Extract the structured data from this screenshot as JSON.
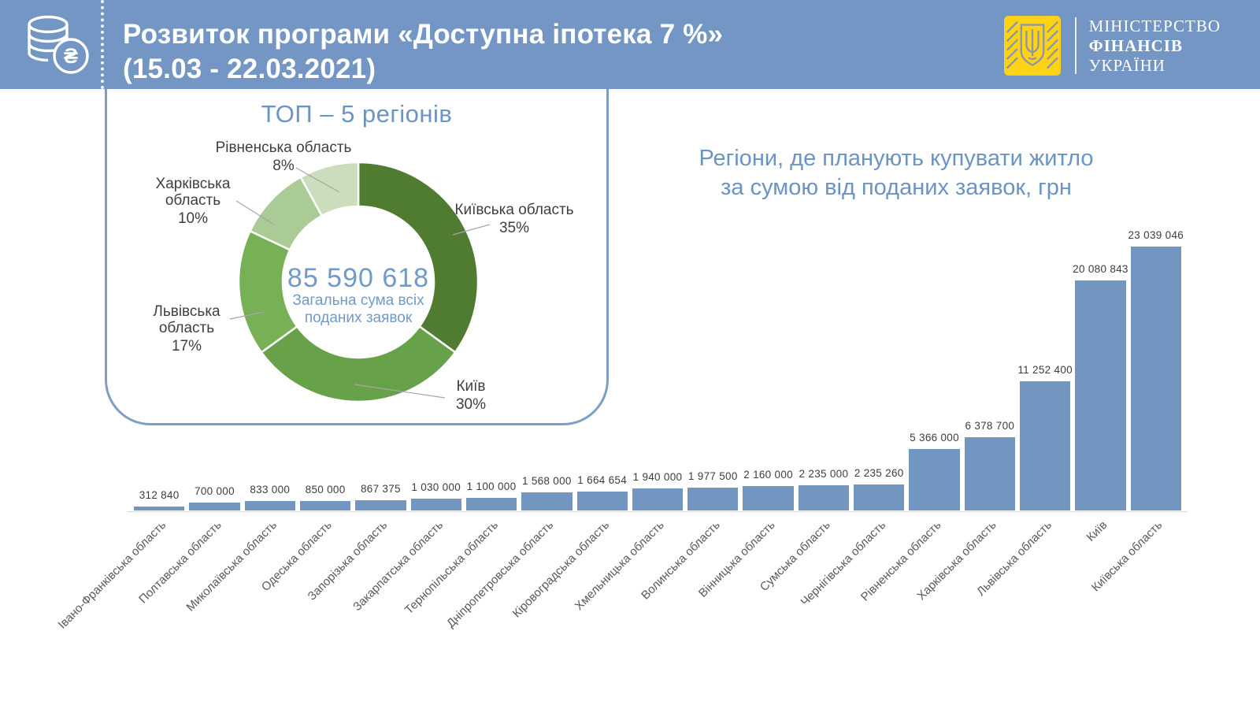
{
  "header": {
    "title_line1": "Розвиток програми «Доступна іпотека 7 %»",
    "title_line2": "(15.03 - 22.03.2021)",
    "coin_symbol": "₴",
    "ministry": {
      "line1": "МІНІСТЕРСТВО",
      "line2": "ФІНАНСІВ",
      "line3": "УКРАЇНИ"
    }
  },
  "colors": {
    "header_bg": "#7396c4",
    "bar_fill": "#7396c1",
    "accent_blue_text": "#6b94c5",
    "card_border": "#7d9fc7",
    "logo_yellow": "#fed215",
    "axis_line": "#d9d9d9",
    "donut_greens": [
      "#4f7c31",
      "#67a24a",
      "#77b055",
      "#aacb95",
      "#cbddbd"
    ]
  },
  "chart_data": [
    {
      "type": "pie",
      "subtype": "donut",
      "title": "ТОП – 5 регіонів",
      "center_value": "85 590 618",
      "center_label_line1": "Загальна  сума всіх",
      "center_label_line2": "поданих заявок",
      "start_angle_deg": 0,
      "direction": "clockwise",
      "segments": [
        {
          "label": "Київська область",
          "pct": 35,
          "pct_label": "35%",
          "color": "#4f7c31"
        },
        {
          "label": "Київ",
          "pct": 30,
          "pct_label": "30%",
          "color": "#67a24a"
        },
        {
          "label": "Львівська область",
          "pct": 17,
          "pct_label": "17%",
          "color": "#77b055"
        },
        {
          "label": "Харківська область",
          "pct": 10,
          "pct_label": "10%",
          "color": "#aacb95"
        },
        {
          "label": "Рівненська область",
          "pct": 8,
          "pct_label": "8%",
          "color": "#cbddbd"
        }
      ]
    },
    {
      "type": "bar",
      "title_line1": "Регіони, де планують купувати житло",
      "title_line2": "за сумою від поданих заявок, грн",
      "bar_color": "#7396c1",
      "ylim": [
        0,
        23039046
      ],
      "grid": false,
      "categories": [
        "Івано-Франківська область",
        "Полтавська область",
        "Миколаївська область",
        "Одеська область",
        "Запорізька область",
        "Закарпатська область",
        "Тернопільська область",
        "Дніпропетровська область",
        "Кіровоградська область",
        "Хмельницька область",
        "Волинська область",
        "Вінницька область",
        "Сумська область",
        "Чернігівська область",
        "Рівненська область",
        "Харківська область",
        "Львівська область",
        "Київ",
        "Київська область"
      ],
      "values": [
        312840,
        700000,
        833000,
        850000,
        867375,
        1030000,
        1100000,
        1568000,
        1664654,
        1940000,
        1977500,
        2160000,
        2235000,
        2235260,
        5366000,
        6378700,
        11252400,
        20080843,
        23039046
      ],
      "value_labels": [
        "312 840",
        "700 000",
        "833 000",
        "850 000",
        "867 375",
        "1 030 000",
        "1 100 000",
        "1 568 000",
        "1 664 654",
        "1 940 000",
        "1 977 500",
        "2 160 000",
        "2 235 000",
        "2 235 260",
        "5 366 000",
        "6 378 700",
        "11 252 400",
        "20 080 843",
        "23 039 046"
      ]
    }
  ]
}
